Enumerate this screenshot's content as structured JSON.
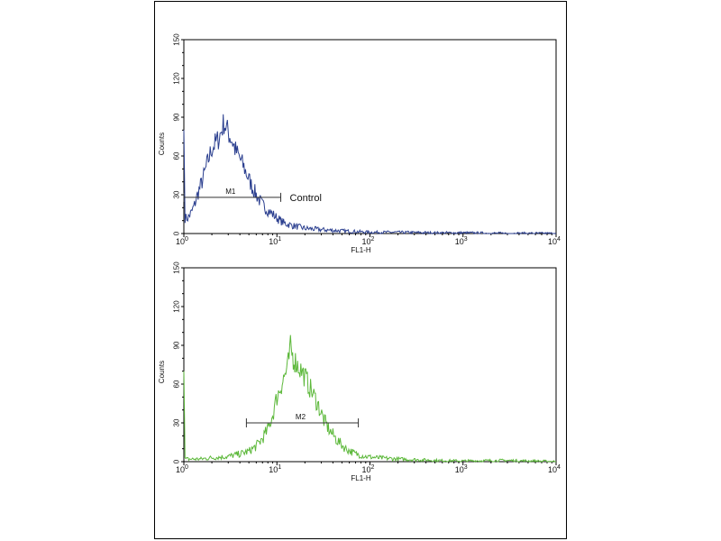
{
  "chart_data": [
    {
      "type": "line",
      "xlabel": "FL1-H",
      "ylabel": "Counts",
      "xscale": "log",
      "xlim": [
        1,
        10000
      ],
      "ylim": [
        0,
        150
      ],
      "xticks": [
        "10^0",
        "10^1",
        "10^2",
        "10^3",
        "10^4"
      ],
      "yticks": [
        0,
        30,
        60,
        90,
        120,
        150
      ],
      "grid": false,
      "color": "#2b3f8f",
      "annotation": "Control",
      "marker": {
        "label": "M1",
        "from": 1,
        "to": 11,
        "y": 28
      },
      "x": [
        1.0,
        1.03,
        1.1,
        1.2,
        1.3,
        1.4,
        1.6,
        1.8,
        2.0,
        2.3,
        2.5,
        2.7,
        3.0,
        3.3,
        3.6,
        4.0,
        4.5,
        5.0,
        5.5,
        6.0,
        7.0,
        8.0,
        9.0,
        10,
        12,
        15,
        20,
        30,
        50,
        100,
        200,
        500,
        1000,
        3000,
        10000
      ],
      "y": [
        80,
        12,
        12,
        16,
        22,
        30,
        42,
        55,
        66,
        72,
        78,
        86,
        78,
        72,
        64,
        58,
        50,
        42,
        35,
        30,
        22,
        18,
        15,
        12,
        8,
        6,
        4,
        3,
        2,
        1,
        1,
        0.5,
        0.5,
        0,
        0
      ]
    },
    {
      "type": "line",
      "xlabel": "FL1-H",
      "ylabel": "Counts",
      "xscale": "log",
      "xlim": [
        1,
        10000
      ],
      "ylim": [
        0,
        150
      ],
      "xticks": [
        "10^0",
        "10^1",
        "10^2",
        "10^3",
        "10^4"
      ],
      "yticks": [
        0,
        30,
        60,
        90,
        120,
        150
      ],
      "grid": false,
      "color": "#5cb83a",
      "marker": {
        "label": "M2",
        "from": 4.7,
        "to": 75,
        "y": 30
      },
      "x": [
        1.0,
        1.03,
        1.5,
        2,
        3,
        4,
        5,
        6,
        7,
        8,
        9,
        10,
        11,
        12,
        13,
        14,
        15,
        17,
        20,
        23,
        27,
        32,
        37,
        45,
        55,
        70,
        90,
        120,
        200,
        500,
        1000,
        2800,
        10000
      ],
      "y": [
        70,
        2,
        2,
        3,
        4,
        6,
        8,
        12,
        18,
        25,
        36,
        50,
        58,
        66,
        72,
        88,
        80,
        74,
        66,
        56,
        46,
        32,
        24,
        16,
        10,
        6,
        4,
        3,
        2,
        1,
        0.5,
        1,
        0
      ]
    }
  ]
}
